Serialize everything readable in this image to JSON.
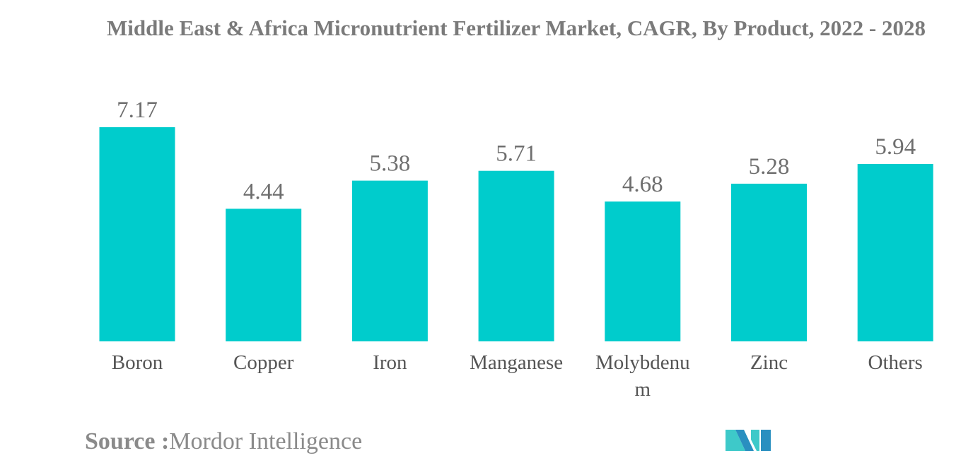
{
  "chart_data": {
    "type": "bar",
    "title": "Middle East & Africa Micronutrient Fertilizer Market, CAGR, By Product, 2022 - 2028",
    "categories": [
      "Boron",
      "Copper",
      "Iron",
      "Manganese",
      "Molybdenum",
      "Zinc",
      "Others"
    ],
    "values": [
      7.17,
      4.44,
      5.38,
      5.71,
      4.68,
      5.28,
      5.94
    ],
    "value_labels": [
      "7.17",
      "4.44",
      "5.38",
      "5.71",
      "4.68",
      "5.28",
      "5.94"
    ],
    "xlabel": "",
    "ylabel": "",
    "ylim": [
      0,
      7.17
    ],
    "grid": false,
    "legend": "none",
    "bar_color": "#00cccc"
  },
  "source": {
    "label": "Source :",
    "text": "Mordor Intelligence"
  },
  "colors": {
    "title": "#7a7a7a",
    "text": "#555555",
    "logo_dark": "#2a8fc0",
    "logo_light": "#3ec9c9"
  }
}
